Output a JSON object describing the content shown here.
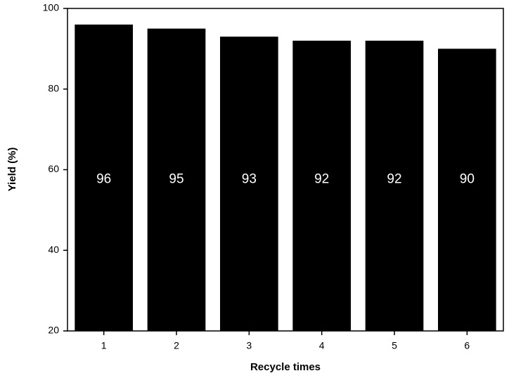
{
  "chart_data": {
    "type": "bar",
    "x_label": "Recycle times",
    "y_label": "Yield (%)",
    "categories": [
      "1",
      "2",
      "3",
      "4",
      "5",
      "6"
    ],
    "values": [
      96,
      95,
      93,
      92,
      92,
      90
    ],
    "color": "#000000",
    "ylim": [
      20,
      100
    ],
    "yticks": [
      20,
      40,
      60,
      80,
      100
    ],
    "grid": false
  }
}
